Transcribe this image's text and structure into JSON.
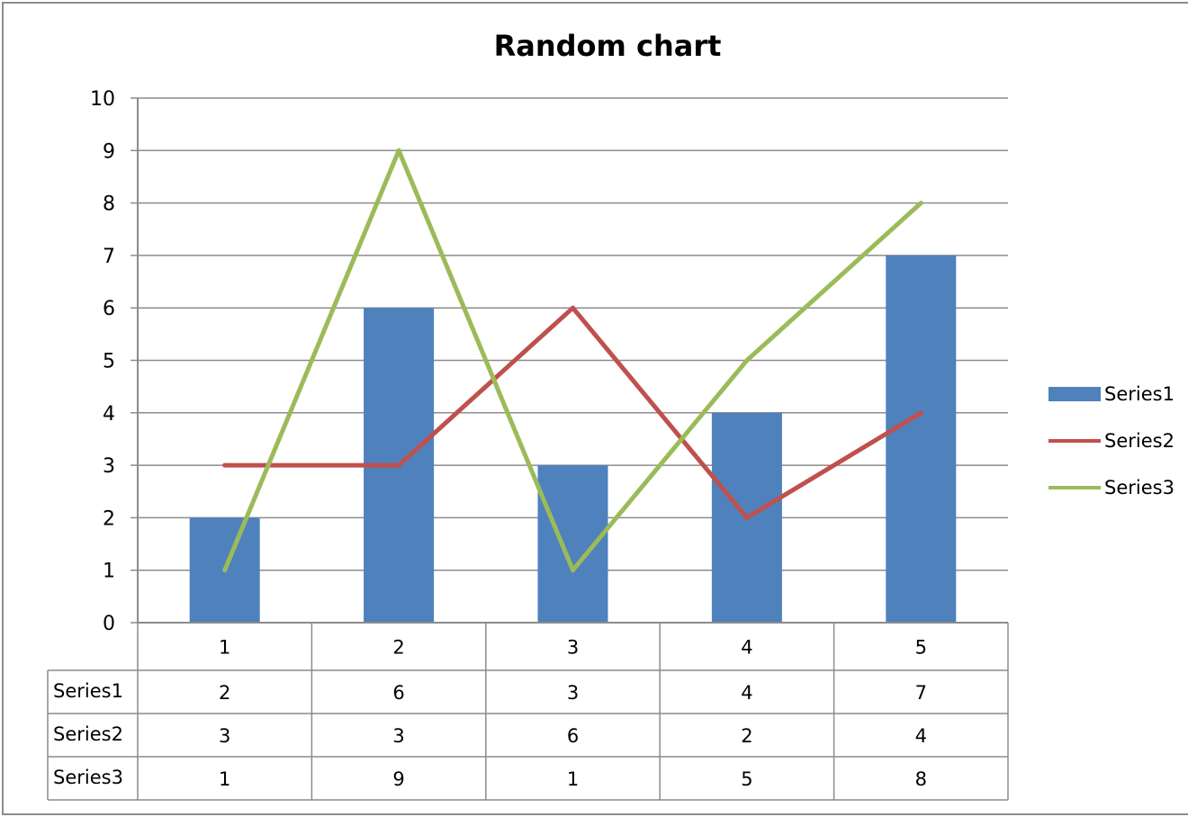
{
  "chart_data": {
    "type": "bar",
    "title": "Random chart",
    "xlabel": "",
    "ylabel": "",
    "ylim": [
      0,
      10
    ],
    "yticks": [
      0,
      1,
      2,
      3,
      4,
      5,
      6,
      7,
      8,
      9,
      10
    ],
    "categories": [
      "1",
      "2",
      "3",
      "4",
      "5"
    ],
    "series": [
      {
        "name": "Series1",
        "kind": "bar",
        "color": "#4F81BD",
        "values": [
          2,
          6,
          3,
          4,
          7
        ]
      },
      {
        "name": "Series2",
        "kind": "line",
        "color": "#C0504D",
        "values": [
          3,
          3,
          6,
          2,
          4
        ]
      },
      {
        "name": "Series3",
        "kind": "line",
        "color": "#9BBB59",
        "values": [
          1,
          9,
          1,
          5,
          8
        ]
      }
    ],
    "grid": true,
    "legend": "right",
    "data_table": true
  }
}
